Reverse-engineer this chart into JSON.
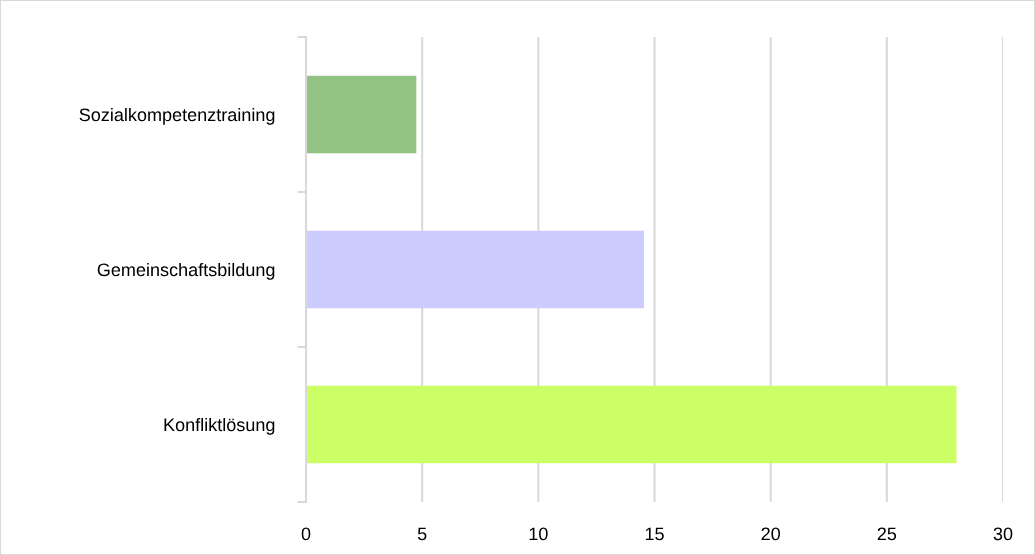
{
  "chart_data": {
    "type": "bar",
    "orientation": "horizontal",
    "categories": [
      "Sozialkompetenztraining",
      "Gemeinschaftsbildung",
      "Konfliktlösung"
    ],
    "values": [
      4.75,
      14.55,
      28.0
    ],
    "colors": [
      "#93c383",
      "#ccccff",
      "#ccff66"
    ],
    "xlim": [
      0,
      30
    ],
    "xticks": [
      0,
      5,
      10,
      15,
      20,
      25,
      30
    ],
    "grid": "x"
  }
}
